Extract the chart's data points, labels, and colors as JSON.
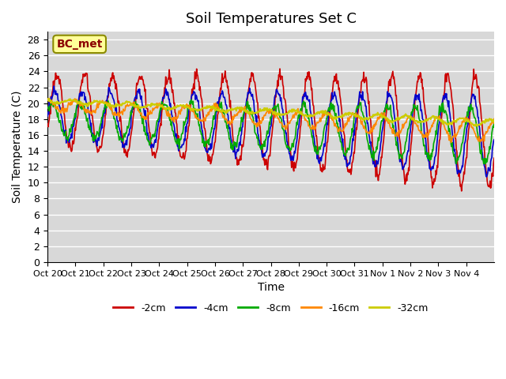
{
  "title": "Soil Temperatures Set C",
  "xlabel": "Time",
  "ylabel": "Soil Temperature (C)",
  "ylim": [
    0,
    29
  ],
  "yticks": [
    0,
    2,
    4,
    6,
    8,
    10,
    12,
    14,
    16,
    18,
    20,
    22,
    24,
    26,
    28
  ],
  "annotation_text": "BC_met",
  "annotation_color": "#8B0000",
  "annotation_bg": "#FFFF99",
  "series_colors": {
    "-2cm": "#CC0000",
    "-4cm": "#0000CC",
    "-8cm": "#00AA00",
    "-16cm": "#FF8800",
    "-32cm": "#CCCC00"
  },
  "x_tick_labels": [
    "Oct 20",
    "Oct 21",
    "Oct 22",
    "Oct 23",
    "Oct 24",
    "Oct 25",
    "Oct 26",
    "Oct 27",
    "Oct 28",
    "Oct 29",
    "Oct 30",
    "Oct 31",
    "Nov 1",
    "Nov 2",
    "Nov 3",
    "Nov 4"
  ],
  "n_days": 16,
  "plot_bg_color": "#D8D8D8",
  "grid_color": "#FFFFFF",
  "fig_bg": "#FFFFFF"
}
